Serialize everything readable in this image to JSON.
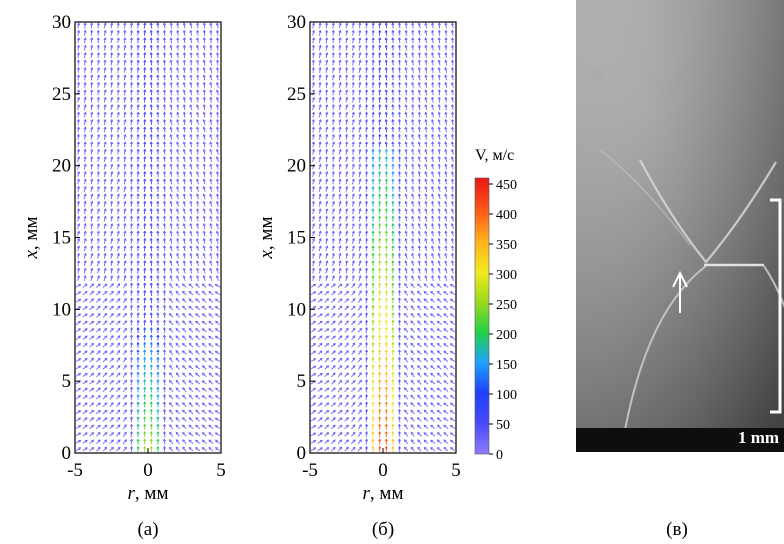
{
  "panels": [
    {
      "id": "a",
      "caption": "(а)"
    },
    {
      "id": "b",
      "caption": "(б)"
    },
    {
      "id": "c",
      "caption": "(в)"
    }
  ],
  "chart_data": [
    {
      "type": "vector_field",
      "panel": "(а)",
      "xlabel_var": "r",
      "xlabel_unit": ", мм",
      "ylabel_var": "x",
      "ylabel_unit": ", мм",
      "xlim": [
        -5,
        5
      ],
      "ylim": [
        0,
        30
      ],
      "xticks": [
        -5,
        0,
        5
      ],
      "yticks": [
        0,
        5,
        10,
        15,
        20,
        25,
        30
      ],
      "colormap": "velocity V, 0–450 м/с (violet→blue→green→yellow→red)",
      "jet": {
        "max_velocity": 280,
        "visible_length_mm": 9,
        "half_width_mm": 0.8
      },
      "background_velocity": 25,
      "description_values": {
        "field_direction": "upward, converging toward axis at low x"
      }
    },
    {
      "type": "vector_field",
      "panel": "(б)",
      "xlabel_var": "r",
      "xlabel_unit": ", мм",
      "ylabel_var": "x",
      "ylabel_unit": ", мм",
      "xlim": [
        -5,
        5
      ],
      "ylim": [
        0,
        30
      ],
      "xticks": [
        -5,
        0,
        5
      ],
      "yticks": [
        0,
        5,
        10,
        15,
        20,
        25,
        30
      ],
      "jet": {
        "max_velocity": 450,
        "visible_length_mm": 21,
        "half_width_mm": 0.9
      },
      "background_velocity": 25
    }
  ],
  "colorbar": {
    "title": "V, м/с",
    "ticks": [
      0,
      50,
      100,
      150,
      200,
      250,
      300,
      350,
      400,
      450
    ],
    "min": 0,
    "max": 460
  },
  "photo": {
    "scale_label": "1 mm"
  }
}
